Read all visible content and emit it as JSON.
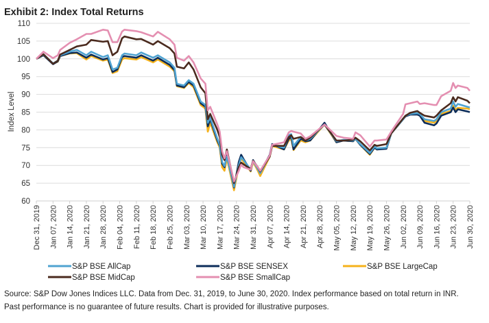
{
  "chart_data": {
    "type": "line",
    "title": "Exhibit 2: Index Total Returns",
    "ylabel": "Index Level",
    "xlabel": "",
    "ylim": [
      60,
      110
    ],
    "yticks": [
      60,
      65,
      70,
      75,
      80,
      85,
      90,
      95,
      100,
      105,
      110
    ],
    "grid": "horizontal",
    "legend_position": "bottom",
    "xtick_labels": [
      "Dec 31, 2019",
      "Jan 07, 2020",
      "Jan 14, 2020",
      "Jan 21, 2020",
      "Jan 28, 2020",
      "Feb 04, 2020",
      "Feb 11, 2020",
      "Feb 18, 2020",
      "Feb 25, 2020",
      "Mar 03, 2020",
      "Mar 10, 2020",
      "Mar 17, 2020",
      "Mar 24, 2020",
      "Mar 31, 2020",
      "Apr 07, 2020",
      "Apr 14, 2020",
      "Apr 21, 2020",
      "Apr 28, 2020",
      "May 05, 2020",
      "May 12, 2020",
      "May 19, 2020",
      "May 26, 2020",
      "Jun 02, 2020",
      "Jun 09, 2020",
      "Jun 16, 2020",
      "Jun 23, 2020",
      "Jun 30, 2020"
    ],
    "x": [
      "2019-12-31",
      "2020-01-03",
      "2020-01-07",
      "2020-01-09",
      "2020-01-10",
      "2020-01-14",
      "2020-01-17",
      "2020-01-21",
      "2020-01-23",
      "2020-01-28",
      "2020-01-30",
      "2020-02-01",
      "2020-02-03",
      "2020-02-05",
      "2020-02-06",
      "2020-02-11",
      "2020-02-13",
      "2020-02-18",
      "2020-02-20",
      "2020-02-25",
      "2020-02-27",
      "2020-02-28",
      "2020-03-02",
      "2020-03-04",
      "2020-03-06",
      "2020-03-09",
      "2020-03-11",
      "2020-03-12",
      "2020-03-13",
      "2020-03-16",
      "2020-03-17",
      "2020-03-18",
      "2020-03-19",
      "2020-03-20",
      "2020-03-23",
      "2020-03-25",
      "2020-03-26",
      "2020-03-27",
      "2020-03-30",
      "2020-03-31",
      "2020-04-02",
      "2020-04-03",
      "2020-04-07",
      "2020-04-08",
      "2020-04-13",
      "2020-04-15",
      "2020-04-16",
      "2020-04-17",
      "2020-04-20",
      "2020-04-22",
      "2020-04-24",
      "2020-04-30",
      "2020-05-05",
      "2020-05-08",
      "2020-05-12",
      "2020-05-13",
      "2020-05-15",
      "2020-05-19",
      "2020-05-21",
      "2020-05-22",
      "2020-05-26",
      "2020-05-28",
      "2020-06-02",
      "2020-06-03",
      "2020-06-05",
      "2020-06-08",
      "2020-06-09",
      "2020-06-11",
      "2020-06-15",
      "2020-06-16",
      "2020-06-18",
      "2020-06-22",
      "2020-06-23",
      "2020-06-24",
      "2020-06-25",
      "2020-06-29",
      "2020-06-30"
    ],
    "series": [
      {
        "name": "S&P BSE AllCap",
        "color": "#4fa3d1",
        "values": [
          100,
          101.2,
          98.7,
          99.5,
          101,
          102,
          102.5,
          101,
          102,
          100.5,
          101,
          97,
          97.5,
          101,
          101.5,
          101,
          101.8,
          100.3,
          101,
          99,
          97.5,
          93,
          92.5,
          94,
          93,
          88,
          87,
          82,
          83.5,
          77.5,
          75.8,
          71,
          69.8,
          72.5,
          64,
          70,
          72.3,
          71.5,
          68.8,
          71.2,
          69,
          67.8,
          72.8,
          75.8,
          75,
          78.5,
          78.8,
          75.5,
          78,
          77,
          77.5,
          81.5,
          76.8,
          77.2,
          77,
          77.5,
          76,
          73.5,
          75.3,
          74.8,
          75,
          79,
          83,
          84,
          84.5,
          84.7,
          84.5,
          83,
          82.5,
          83,
          85,
          86,
          88,
          86.5,
          87.3,
          86.5,
          86.3
        ]
      },
      {
        "name": "S&P BSE SENSEX",
        "color": "#0c2d5a",
        "values": [
          100,
          101,
          98.5,
          99.3,
          100.8,
          101.6,
          101.8,
          100.3,
          101.2,
          99.8,
          100.2,
          96.3,
          97,
          100.5,
          100.8,
          100.3,
          101,
          99.5,
          100.3,
          98.3,
          96.8,
          92.5,
          92,
          93.5,
          92.5,
          87.5,
          86.5,
          81,
          83,
          77,
          75.5,
          70.5,
          69.5,
          73,
          63.8,
          71,
          73,
          71.8,
          68.5,
          71.5,
          69.2,
          68,
          73,
          76,
          74.5,
          77.5,
          78,
          74.5,
          77.5,
          76.8,
          77,
          82,
          76.5,
          77,
          76.8,
          77.5,
          75.8,
          73.2,
          75,
          74.5,
          74.7,
          79,
          83,
          83.8,
          84.3,
          84.3,
          84,
          82,
          81.3,
          81.8,
          84,
          85,
          86.3,
          85,
          85.8,
          85.2,
          85
        ]
      },
      {
        "name": "S&P BSE LargeCap",
        "color": "#f5b21b",
        "values": [
          100,
          101,
          98.6,
          99.2,
          100.8,
          101.5,
          101.6,
          99.8,
          100.8,
          99.5,
          99.8,
          96,
          96.5,
          99.8,
          100.2,
          99.8,
          100.5,
          99,
          99.8,
          97.8,
          96.5,
          92.3,
          91.8,
          93.2,
          92,
          87,
          86,
          79.5,
          82,
          76.5,
          75,
          69.5,
          68.5,
          72,
          63,
          69.8,
          72,
          71,
          68.3,
          71,
          68.5,
          67,
          72.5,
          75.5,
          74.5,
          77,
          77.5,
          74.3,
          77,
          76.5,
          77,
          81.5,
          76.5,
          77,
          76.8,
          77.5,
          75.8,
          73,
          75,
          74.5,
          74.8,
          79,
          83,
          84,
          84.5,
          84.7,
          84.5,
          82.5,
          82,
          82.5,
          84.5,
          85.3,
          86.8,
          85.7,
          86.2,
          86,
          85.8
        ]
      },
      {
        "name": "S&P BSE MidCap",
        "color": "#4a2a1e",
        "values": [
          100,
          101.3,
          98.6,
          99.5,
          101.2,
          102.5,
          103.5,
          104,
          105.3,
          104.8,
          105,
          101,
          102,
          105.8,
          106.3,
          105.5,
          105.6,
          104,
          105,
          103,
          101.5,
          97.8,
          97.3,
          99,
          97,
          92,
          90.3,
          83,
          84.5,
          80,
          78,
          73,
          71.5,
          74.5,
          65,
          69.5,
          70.8,
          70.3,
          69,
          71.3,
          69.5,
          68.3,
          72.5,
          75.5,
          75.5,
          78,
          78.5,
          77.5,
          78,
          77,
          77.8,
          81.5,
          77,
          77,
          77.2,
          77.8,
          76.8,
          74.2,
          75.8,
          75.5,
          76,
          79,
          83.2,
          84,
          84.8,
          85.3,
          84.8,
          84,
          83.5,
          84,
          85.5,
          87.5,
          89.2,
          88,
          89.2,
          88.2,
          87.5
        ]
      },
      {
        "name": "S&P BSE SmallCap",
        "color": "#e48fb1",
        "values": [
          100,
          102,
          100.2,
          101,
          102.5,
          104.5,
          105.5,
          107,
          107,
          108.2,
          108,
          104.7,
          104.7,
          107.7,
          108.2,
          107.8,
          107.5,
          106.3,
          107.6,
          105.5,
          104,
          100.3,
          99.5,
          100.8,
          99,
          94.5,
          93,
          85.5,
          86.5,
          81.5,
          79.5,
          74,
          72,
          74,
          65.5,
          68.5,
          70.2,
          69.5,
          68.8,
          71.2,
          69.5,
          68.5,
          72.8,
          75.8,
          76.5,
          79.3,
          79.7,
          79.5,
          79,
          77.5,
          78.2,
          81.5,
          78.3,
          77.8,
          77.5,
          79.3,
          78.5,
          75.3,
          77,
          77,
          77.3,
          79.5,
          84.5,
          87.2,
          87.5,
          88,
          87.3,
          87.5,
          87,
          87,
          89.5,
          91,
          93.2,
          91.8,
          92.5,
          91.8,
          91
        ]
      }
    ]
  },
  "footnote": {
    "line1": "Source: S&P Dow Jones Indices LLC. Data from Dec. 31, 2019, to June 30, 2020. Index performance based on total return in INR.",
    "line2": "Past performance is no guarantee of future results. Chart is provided for illustrative purposes."
  }
}
